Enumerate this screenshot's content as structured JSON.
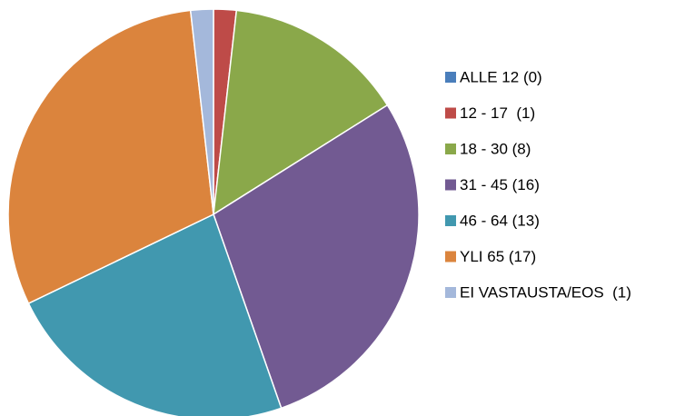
{
  "chart_data": {
    "type": "pie",
    "categories": [
      "ALLE 12 (0)",
      "12 - 17  (1)",
      "18 - 30 (8)",
      "31 - 45 (16)",
      "46 - 64 (13)",
      "YLI 65 (17)",
      "EI VASTAUSTA/EOS  (1)"
    ],
    "values": [
      0,
      1,
      8,
      16,
      13,
      17,
      1
    ],
    "colors": [
      "#4a7ebb",
      "#be4b48",
      "#8aa84a",
      "#725a92",
      "#4198af",
      "#db843d",
      "#a4b8db"
    ],
    "legend": "right"
  }
}
